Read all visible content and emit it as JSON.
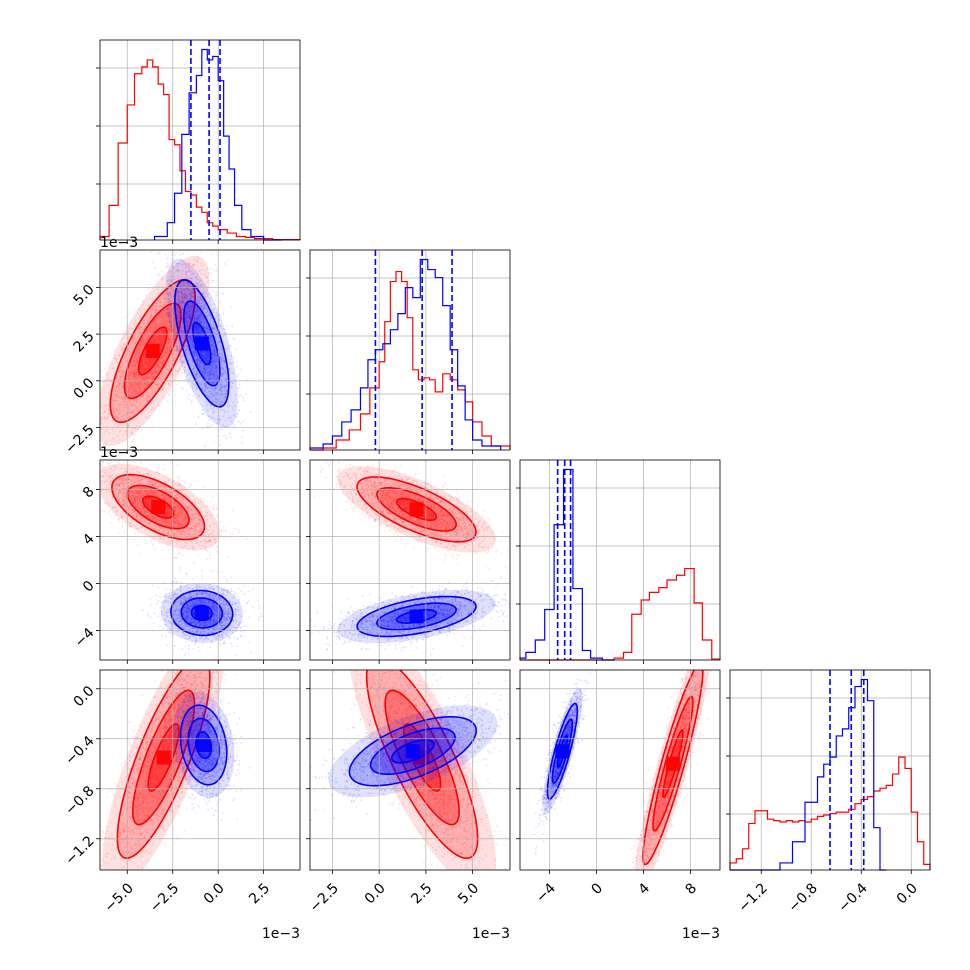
{
  "chart_data": {
    "type": "corner",
    "series": [
      {
        "name": "",
        "color": "#ff0000"
      },
      {
        "name": "",
        "color": "#0000ff"
      }
    ],
    "grid": true,
    "params": [
      {
        "range": [
          -6.5,
          4.5
        ],
        "ticks": [
          -5.0,
          -2.5,
          0.0,
          2.5
        ],
        "tick_labels": [
          "−5.0",
          "−2.5",
          "0.0",
          "2.5"
        ],
        "offset": "1e−3"
      },
      {
        "range": [
          -3.7,
          7.0
        ],
        "ticks": [
          -2.5,
          0.0,
          2.5,
          5.0
        ],
        "tick_labels": [
          "−2.5",
          "0.0",
          "2.5",
          "5.0"
        ],
        "offset": "1e−3"
      },
      {
        "range": [
          -6.5,
          10.5
        ],
        "ticks": [
          -4,
          0,
          4,
          8
        ],
        "tick_labels": [
          "−4",
          "0",
          "4",
          "8"
        ],
        "offset": "1e−3"
      },
      {
        "range": [
          -1.45,
          0.15
        ],
        "ticks": [
          -1.2,
          -0.8,
          -0.4,
          0.0
        ],
        "tick_labels": [
          "−1.2",
          "−0.8",
          "−0.4",
          "0.0"
        ],
        "offset": ""
      }
    ],
    "histograms": [
      {
        "param": 0,
        "red_edges": [
          -6.5,
          -6.0,
          -5.5,
          -5.0,
          -4.6,
          -4.2,
          -3.9,
          -3.6,
          -3.3,
          -3.0,
          -2.7,
          -2.4,
          -2.1,
          -1.8,
          -1.5,
          -1.2,
          -0.9,
          -0.6,
          -0.3,
          0.0,
          0.5,
          1.0,
          1.5,
          2.0,
          3.0,
          4.5
        ],
        "red_counts": [
          0.02,
          0.2,
          0.56,
          0.78,
          0.96,
          1.0,
          1.04,
          1.0,
          0.9,
          0.84,
          0.58,
          0.55,
          0.4,
          0.28,
          0.26,
          0.19,
          0.16,
          0.1,
          0.08,
          0.06,
          0.04,
          0.02,
          0.015,
          0.008,
          0.002
        ],
        "blue_edges": [
          -3.5,
          -2.8,
          -2.4,
          -2.0,
          -1.6,
          -1.2,
          -0.9,
          -0.6,
          -0.3,
          0.0,
          0.3,
          0.6,
          0.9,
          1.3,
          1.8,
          2.5,
          3.5
        ],
        "blue_counts": [
          0.02,
          0.1,
          0.27,
          0.61,
          0.85,
          0.95,
          1.1,
          1.04,
          1.06,
          0.92,
          0.6,
          0.41,
          0.2,
          0.06,
          0.02,
          0.0
        ],
        "quantiles": [
          -1.5,
          -0.5,
          0.1
        ]
      },
      {
        "param": 1,
        "red_edges": [
          -3.7,
          -3.0,
          -2.3,
          -1.6,
          -1.0,
          -0.5,
          0.0,
          0.3,
          0.6,
          0.9,
          1.2,
          1.5,
          1.8,
          2.1,
          2.4,
          2.7,
          3.0,
          3.4,
          3.8,
          4.2,
          4.6,
          5.0,
          5.5,
          6.0,
          7.0
        ],
        "red_counts": [
          0.0,
          0.01,
          0.05,
          0.1,
          0.18,
          0.31,
          0.44,
          0.64,
          0.84,
          0.89,
          0.84,
          0.66,
          0.4,
          0.35,
          0.36,
          0.35,
          0.29,
          0.38,
          0.35,
          0.3,
          0.24,
          0.14,
          0.07,
          0.02
        ],
        "blue_edges": [
          -3.7,
          -3.0,
          -2.5,
          -2.0,
          -1.5,
          -1.0,
          -0.6,
          -0.2,
          0.2,
          0.6,
          1.0,
          1.4,
          1.8,
          2.2,
          2.6,
          3.0,
          3.4,
          3.8,
          4.2,
          4.6,
          5.0,
          5.5,
          6.5
        ],
        "blue_counts": [
          0.01,
          0.03,
          0.07,
          0.14,
          0.2,
          0.31,
          0.45,
          0.5,
          0.53,
          0.6,
          0.68,
          0.81,
          0.76,
          0.95,
          0.9,
          0.86,
          0.72,
          0.5,
          0.32,
          0.15,
          0.05,
          0.02
        ],
        "quantiles": [
          -0.2,
          2.3,
          3.9
        ]
      },
      {
        "param": 2,
        "red_edges": [
          -6.5,
          1.5,
          2.3,
          3.0,
          3.8,
          4.5,
          5.3,
          6.0,
          6.8,
          7.5,
          8.3,
          9.0,
          9.8,
          10.5
        ],
        "red_counts": [
          0.0,
          0.02,
          0.08,
          0.48,
          0.63,
          0.71,
          0.76,
          0.84,
          0.89,
          0.96,
          0.6,
          0.21,
          0.01
        ],
        "blue_edges": [
          -6.5,
          -6.0,
          -5.2,
          -4.4,
          -3.6,
          -2.8,
          -2.0,
          -1.2,
          -0.5,
          0.5,
          1.5
        ],
        "blue_counts": [
          0.02,
          0.08,
          0.21,
          0.53,
          1.42,
          2.0,
          0.75,
          0.1,
          0.02,
          0.0
        ],
        "quantiles": [
          -3.3,
          -2.7,
          -2.2
        ]
      },
      {
        "param": 3,
        "red_edges": [
          -1.45,
          -1.4,
          -1.35,
          -1.3,
          -1.25,
          -1.2,
          -1.15,
          -1.1,
          -1.05,
          -1.0,
          -0.95,
          -0.9,
          -0.85,
          -0.8,
          -0.75,
          -0.7,
          -0.65,
          -0.6,
          -0.55,
          -0.5,
          -0.45,
          -0.4,
          -0.35,
          -0.3,
          -0.25,
          -0.2,
          -0.15,
          -0.1,
          -0.05,
          0.0,
          0.05,
          0.1,
          0.15
        ],
        "red_counts": [
          0.05,
          0.08,
          0.15,
          0.33,
          0.42,
          0.42,
          0.36,
          0.35,
          0.34,
          0.35,
          0.34,
          0.35,
          0.34,
          0.36,
          0.38,
          0.39,
          0.4,
          0.41,
          0.41,
          0.43,
          0.47,
          0.5,
          0.52,
          0.56,
          0.58,
          0.6,
          0.68,
          0.8,
          0.72,
          0.41,
          0.2,
          0.04
        ],
        "blue_edges": [
          -1.45,
          -1.05,
          -0.95,
          -0.85,
          -0.75,
          -0.7,
          -0.65,
          -0.6,
          -0.55,
          -0.5,
          -0.45,
          -0.4,
          -0.35,
          -0.3,
          -0.25,
          -0.2
        ],
        "blue_counts": [
          0.0,
          0.05,
          0.2,
          0.48,
          0.66,
          0.75,
          0.8,
          0.95,
          1.0,
          1.15,
          1.3,
          1.35,
          1.2,
          0.3,
          0.0
        ],
        "quantiles": [
          -0.65,
          -0.48,
          -0.38
        ]
      }
    ],
    "scatter_2d": [
      {
        "xparam": 0,
        "yparam": 1,
        "red": {
          "center": [
            -3.6,
            1.6
          ],
          "sd": [
            1.1,
            1.8
          ],
          "corr": 0.75
        },
        "blue": {
          "center": [
            -0.9,
            2.0
          ],
          "sd": [
            0.7,
            1.6
          ],
          "corr": -0.65
        }
      },
      {
        "xparam": 0,
        "yparam": 2,
        "red": {
          "center": [
            -3.3,
            6.5
          ],
          "sd": [
            1.2,
            1.3
          ],
          "corr": -0.6
        },
        "blue": {
          "center": [
            -0.9,
            -2.5
          ],
          "sd": [
            0.8,
            0.9
          ],
          "corr": -0.05
        }
      },
      {
        "xparam": 1,
        "yparam": 2,
        "red": {
          "center": [
            2.0,
            6.3
          ],
          "sd": [
            1.5,
            1.3
          ],
          "corr": -0.7
        },
        "blue": {
          "center": [
            2.0,
            -2.8
          ],
          "sd": [
            1.5,
            0.8
          ],
          "corr": 0.5
        }
      },
      {
        "xparam": 0,
        "yparam": 3,
        "red": {
          "center": [
            -3.0,
            -0.55
          ],
          "sd": [
            1.2,
            0.38
          ],
          "corr": 0.8
        },
        "blue": {
          "center": [
            -0.8,
            -0.45
          ],
          "sd": [
            0.6,
            0.15
          ],
          "corr": -0.2
        }
      },
      {
        "xparam": 1,
        "yparam": 3,
        "red": {
          "center": [
            2.3,
            -0.55
          ],
          "sd": [
            1.4,
            0.38
          ],
          "corr": -0.8
        },
        "blue": {
          "center": [
            1.8,
            -0.5
          ],
          "sd": [
            1.6,
            0.13
          ],
          "corr": 0.6
        }
      },
      {
        "xparam": 2,
        "yparam": 3,
        "red": {
          "center": [
            6.5,
            -0.6
          ],
          "sd": [
            1.2,
            0.38
          ],
          "corr": 0.92
        },
        "blue": {
          "center": [
            -2.9,
            -0.5
          ],
          "sd": [
            0.6,
            0.18
          ],
          "corr": 0.85
        }
      }
    ]
  }
}
